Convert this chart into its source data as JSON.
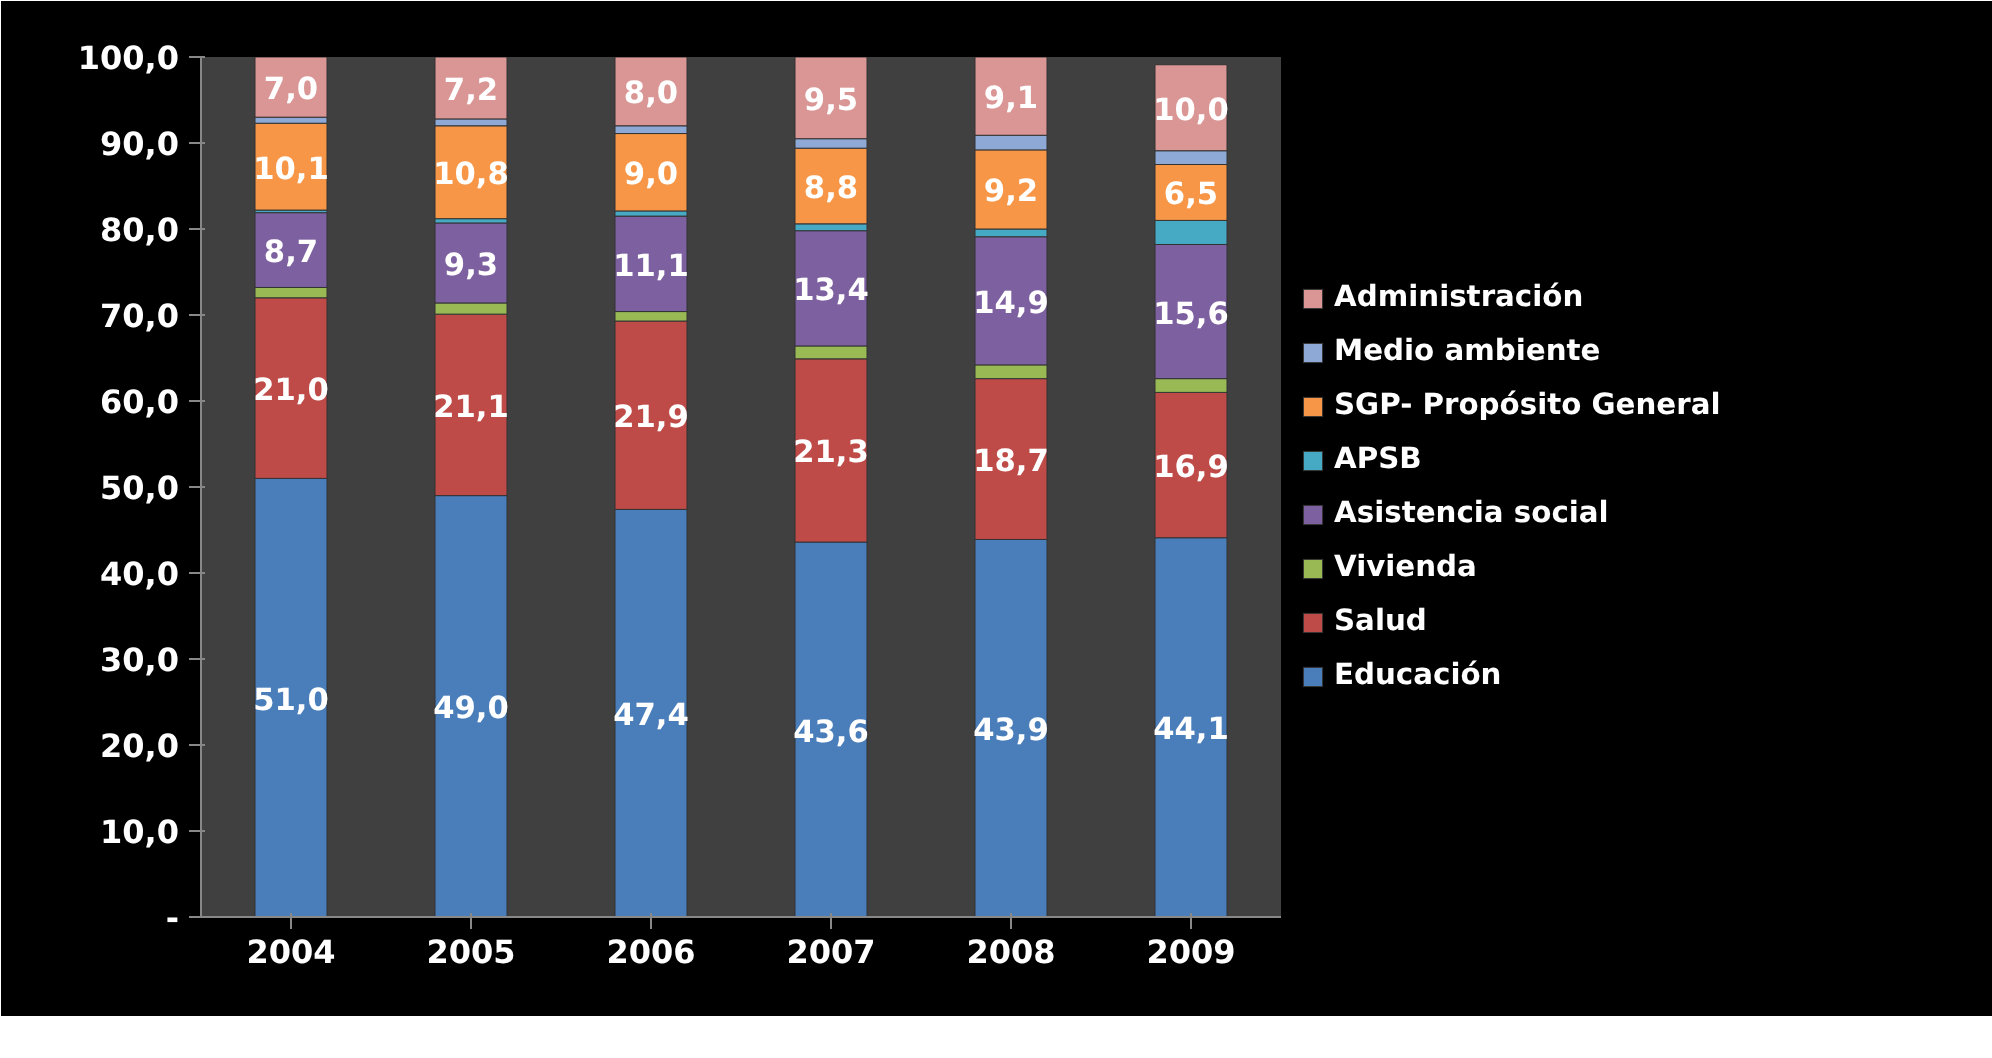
{
  "chart_data": {
    "type": "bar",
    "stacked": true,
    "categories": [
      "2004",
      "2005",
      "2006",
      "2007",
      "2008",
      "2009"
    ],
    "ylim": [
      0,
      100
    ],
    "yticks": [
      {
        "value": 0,
        "label": "-"
      },
      {
        "value": 10,
        "label": "10,0"
      },
      {
        "value": 20,
        "label": "20,0"
      },
      {
        "value": 30,
        "label": "30,0"
      },
      {
        "value": 40,
        "label": "40,0"
      },
      {
        "value": 50,
        "label": "50,0"
      },
      {
        "value": 60,
        "label": "60,0"
      },
      {
        "value": 70,
        "label": "70,0"
      },
      {
        "value": 80,
        "label": "80,0"
      },
      {
        "value": 90,
        "label": "90,0"
      },
      {
        "value": 100,
        "label": "100,0"
      }
    ],
    "grid": false,
    "legend": "right",
    "series": [
      {
        "name": "Educación",
        "color": "#4a7ebb",
        "values": [
          51.0,
          49.0,
          47.4,
          43.6,
          43.9,
          44.1
        ],
        "value_labels": [
          "51,0",
          "49,0",
          "47,4",
          "43,6",
          "43,9",
          "44,1"
        ]
      },
      {
        "name": "Salud",
        "color": "#be4b48",
        "values": [
          21.0,
          21.1,
          21.9,
          21.3,
          18.7,
          16.9
        ],
        "value_labels": [
          "21,0",
          "21,1",
          "21,9",
          "21,3",
          "18,7",
          "16,9"
        ]
      },
      {
        "name": "Vivienda",
        "color": "#98b954",
        "values": [
          1.2,
          1.3,
          1.1,
          1.5,
          1.6,
          1.6
        ],
        "value_labels": [
          null,
          null,
          null,
          null,
          null,
          null
        ]
      },
      {
        "name": "Asistencia social",
        "color": "#7d60a0",
        "values": [
          8.7,
          9.3,
          11.1,
          13.4,
          14.9,
          15.6
        ],
        "value_labels": [
          "8,7",
          "9,3",
          "11,1",
          "13,4",
          "14,9",
          "15,6"
        ]
      },
      {
        "name": "APSB",
        "color": "#46aac5",
        "values": [
          0.3,
          0.5,
          0.6,
          0.8,
          0.9,
          2.8
        ],
        "value_labels": [
          null,
          null,
          null,
          null,
          null,
          null
        ]
      },
      {
        "name": "SGP- Propósito General",
        "color": "#f79646",
        "values": [
          10.1,
          10.8,
          9.0,
          8.8,
          9.2,
          6.5
        ],
        "value_labels": [
          "10,1",
          "10,8",
          "9,0",
          "8,8",
          "9,2",
          "6,5"
        ]
      },
      {
        "name": "Medio ambiente",
        "color": "#8ea9d6",
        "values": [
          0.7,
          0.8,
          0.9,
          1.1,
          1.7,
          1.6
        ],
        "value_labels": [
          null,
          null,
          null,
          null,
          null,
          null
        ]
      },
      {
        "name": "Administración",
        "color": "#d99694",
        "values": [
          7.0,
          7.2,
          8.0,
          9.5,
          9.1,
          10.0
        ],
        "value_labels": [
          "7,0",
          "7,2",
          "8,0",
          "9,5",
          "9,1",
          "10,0"
        ]
      }
    ]
  }
}
